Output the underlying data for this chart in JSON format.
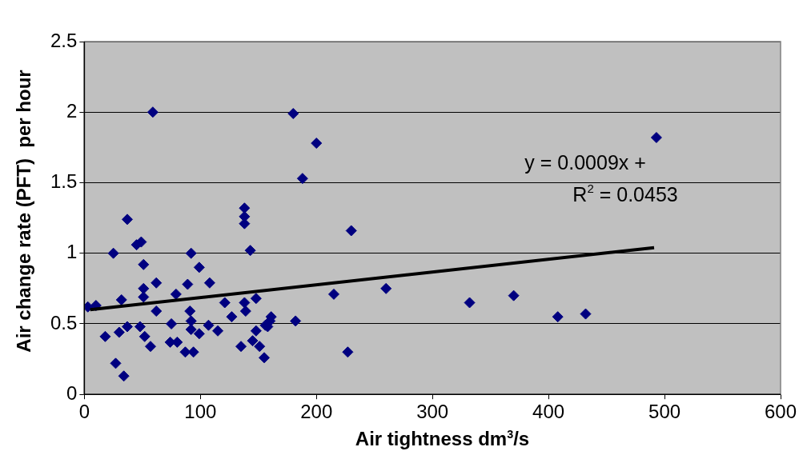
{
  "chart_data": {
    "type": "scatter",
    "xlabel": "Air tightness dm$^{3}$/s",
    "ylabel": "Air change rate (PFT)  per hour",
    "annotations": [
      "y = 0.0009x +",
      "R$^{2}$ = 0.0453"
    ],
    "xlim": [
      0,
      600
    ],
    "xticks": [
      0,
      100,
      200,
      300,
      400,
      500,
      600
    ],
    "ylim": [
      0,
      2.5
    ],
    "yticks": [
      0,
      0.5,
      1,
      1.5,
      2,
      2.5
    ],
    "grid": "y",
    "legend": false,
    "marker": "diamond",
    "series": [
      {
        "color": "#000080",
        "x": [
          3,
          10,
          18,
          25,
          27,
          30,
          32,
          34,
          37,
          37,
          45,
          49,
          51,
          51,
          51,
          48,
          52,
          57,
          59,
          62,
          62,
          74,
          75,
          79,
          80,
          87,
          89,
          91,
          92,
          92,
          92,
          94,
          99,
          99,
          108,
          107,
          115,
          121,
          127,
          135,
          138,
          138,
          138,
          138,
          139,
          143,
          145,
          148,
          148,
          151,
          155,
          156,
          158,
          160,
          161,
          180,
          182,
          188,
          200,
          215,
          227,
          230,
          260,
          332,
          370,
          408,
          432,
          493
        ],
        "values": [
          0.62,
          0.63,
          0.41,
          1.0,
          0.22,
          0.44,
          0.67,
          0.13,
          1.24,
          0.48,
          1.06,
          1.08,
          0.92,
          0.75,
          0.69,
          0.48,
          0.41,
          0.34,
          2.0,
          0.79,
          0.59,
          0.37,
          0.5,
          0.71,
          0.37,
          0.3,
          0.78,
          0.59,
          0.52,
          0.46,
          1.0,
          0.3,
          0.9,
          0.43,
          0.79,
          0.49,
          0.45,
          0.65,
          0.55,
          0.34,
          1.32,
          1.26,
          1.21,
          0.65,
          0.59,
          1.02,
          0.38,
          0.68,
          0.45,
          0.34,
          0.26,
          0.49,
          0.48,
          0.52,
          0.55,
          1.99,
          0.52,
          1.53,
          1.78,
          0.71,
          0.3,
          1.16,
          0.75,
          0.65,
          0.7,
          0.55,
          0.57,
          1.82
        ]
      },
      {
        "type": "line",
        "color": "#000000",
        "marker": "none",
        "x": [
          5,
          491
        ],
        "values": [
          0.6,
          1.04
        ]
      }
    ]
  }
}
